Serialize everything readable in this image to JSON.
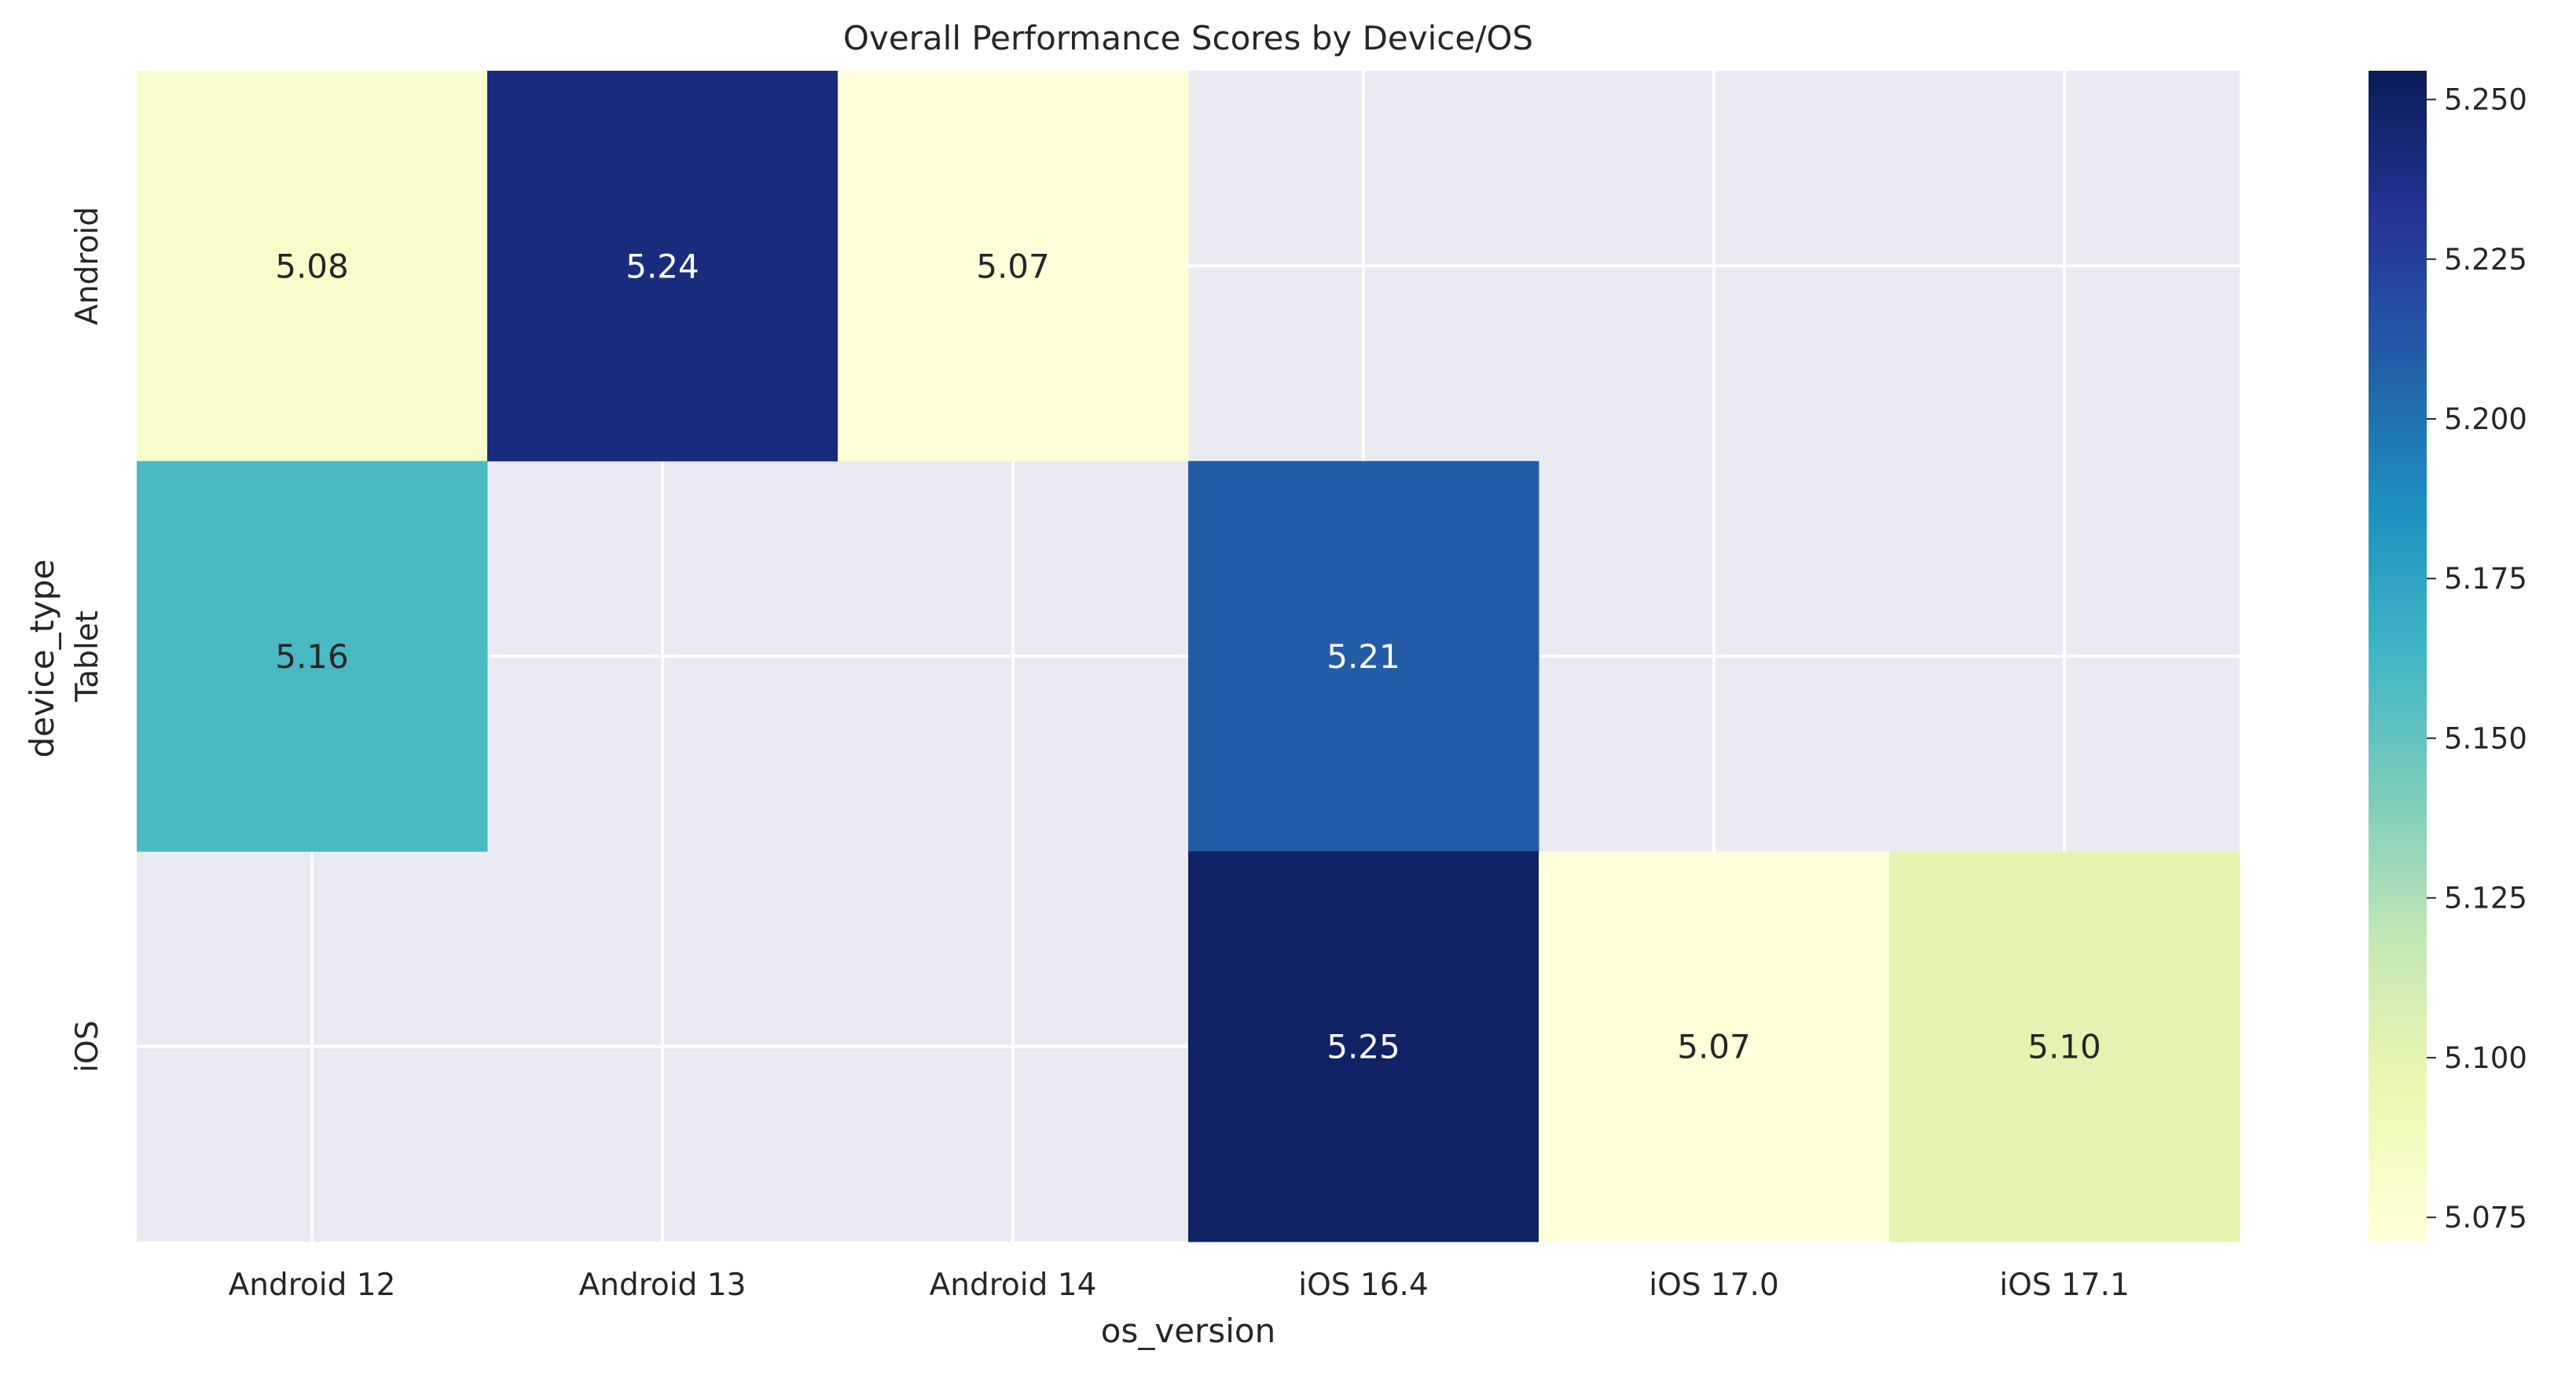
{
  "chart_data": {
    "type": "heatmap",
    "title": "Overall Performance Scores by Device/OS",
    "xlabel": "os_version",
    "ylabel": "device_type",
    "x_categories": [
      "Android 12",
      "Android 13",
      "Android 14",
      "iOS 16.4",
      "iOS 17.0",
      "iOS 17.1"
    ],
    "y_categories": [
      "Android",
      "Tablet",
      "iOS"
    ],
    "values": [
      [
        5.08,
        5.24,
        5.07,
        null,
        null,
        null
      ],
      [
        5.16,
        null,
        null,
        5.21,
        null,
        null
      ],
      [
        null,
        null,
        null,
        5.25,
        5.07,
        5.1
      ]
    ],
    "cell_labels": [
      [
        "5.08",
        "5.24",
        "5.07",
        "",
        "",
        ""
      ],
      [
        "5.16",
        "",
        "",
        "5.21",
        "",
        ""
      ],
      [
        "",
        "",
        "",
        "5.25",
        "5.07",
        "5.10"
      ]
    ],
    "colormap": "YlGnBu",
    "color_range": [
      5.0712,
      5.2545
    ],
    "colorbar_ticks": [
      5.075,
      5.1,
      5.125,
      5.15,
      5.175,
      5.2,
      5.225,
      5.25
    ],
    "colorbar_tick_labels": [
      "5.075",
      "5.100",
      "5.125",
      "5.150",
      "5.175",
      "5.200",
      "5.225",
      "5.250"
    ],
    "grid": true,
    "background_color": "#eaeaf2",
    "grid_color": "#ffffff"
  }
}
